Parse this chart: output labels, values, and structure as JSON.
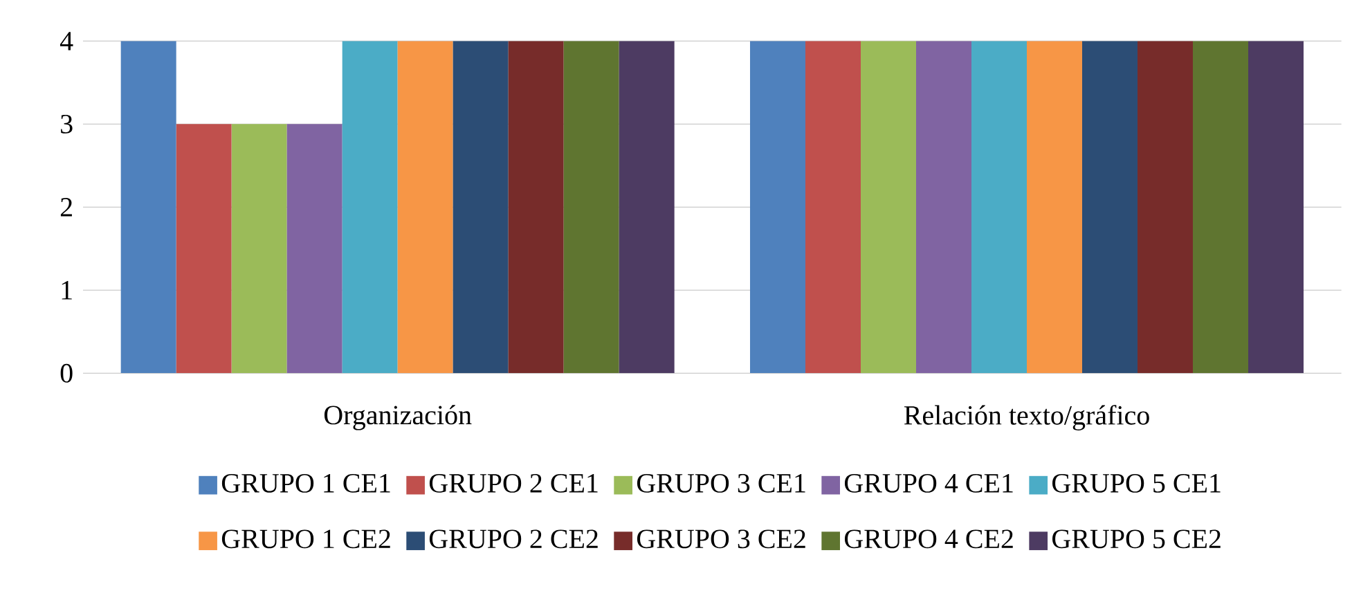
{
  "chart_data": {
    "type": "bar",
    "categories": [
      "Organización",
      "Relación texto/gráfico"
    ],
    "series": [
      {
        "name": "GRUPO 1 CE1",
        "color": "#4f81bd",
        "values": [
          4,
          4
        ]
      },
      {
        "name": "GRUPO 2 CE1",
        "color": "#c0504d",
        "values": [
          3,
          4
        ]
      },
      {
        "name": "GRUPO 3 CE1",
        "color": "#9bbb59",
        "values": [
          3,
          4
        ]
      },
      {
        "name": "GRUPO 4 CE1",
        "color": "#8064a2",
        "values": [
          3,
          4
        ]
      },
      {
        "name": "GRUPO 5 CE1",
        "color": "#4bacc6",
        "values": [
          4,
          4
        ]
      },
      {
        "name": "GRUPO 1 CE2",
        "color": "#f79646",
        "values": [
          4,
          4
        ]
      },
      {
        "name": "GRUPO 2 CE2",
        "color": "#2c4d75",
        "values": [
          4,
          4
        ]
      },
      {
        "name": "GRUPO 3 CE2",
        "color": "#772c2a",
        "values": [
          4,
          4
        ]
      },
      {
        "name": "GRUPO 4 CE2",
        "color": "#5f7530",
        "values": [
          4,
          4
        ]
      },
      {
        "name": "GRUPO 5 CE2",
        "color": "#4d3b62",
        "values": [
          4,
          4
        ]
      }
    ],
    "ylim": [
      0,
      4
    ],
    "yticks": [
      0,
      1,
      2,
      3,
      4
    ],
    "grid": "y",
    "legend": "bottom"
  }
}
